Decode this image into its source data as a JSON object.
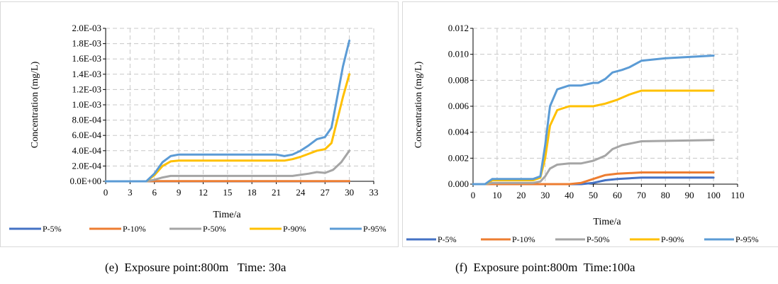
{
  "colors": {
    "p5": "#4472c4",
    "p10": "#ed7d31",
    "p50": "#a5a5a5",
    "p90": "#ffc000",
    "p95": "#5b9bd5"
  },
  "chart_data": [
    {
      "id": "e",
      "type": "line",
      "caption": "(e)  Exposure point:800m   Time: 30a",
      "xlabel": "Time/a",
      "ylabel": "Concentration  (mg/L)",
      "xlim": [
        0,
        33
      ],
      "ylim": [
        0,
        0.002
      ],
      "xticks": [
        0,
        3,
        6,
        9,
        12,
        15,
        18,
        21,
        24,
        27,
        30,
        33
      ],
      "xtick_labels": [
        "0",
        "3",
        "6",
        "9",
        "12",
        "15",
        "18",
        "21",
        "24",
        "27",
        "30",
        "33"
      ],
      "yticks": [
        0,
        0.0002,
        0.0004,
        0.0006,
        0.0008,
        0.001,
        0.0012,
        0.0014,
        0.0016,
        0.0018,
        0.002
      ],
      "ytick_labels": [
        "0.0E+00",
        "2.0E-04",
        "4.0E-04",
        "6.0E-04",
        "8.0E-04",
        "1.0E-03",
        "1.2E-03",
        "1.4E-03",
        "1.6E-03",
        "1.8E-03",
        "2.0E-03"
      ],
      "grid": true,
      "legend_position": "bottom",
      "series": [
        {
          "name": "P-5%",
          "color_key": "p5",
          "x": [
            0,
            30
          ],
          "y": [
            0,
            0
          ]
        },
        {
          "name": "P-10%",
          "color_key": "p10",
          "x": [
            0,
            5,
            6,
            30
          ],
          "y": [
            0,
            0,
            2e-06,
            2e-06
          ]
        },
        {
          "name": "P-50%",
          "color_key": "p50",
          "x": [
            0,
            5,
            6,
            7,
            8,
            9,
            21,
            23,
            25,
            26,
            27,
            28,
            29,
            30
          ],
          "y": [
            0,
            0,
            2e-05,
            5e-05,
            7e-05,
            7e-05,
            7e-05,
            7e-05,
            0.0001,
            0.00012,
            0.00011,
            0.00015,
            0.00025,
            0.0004
          ]
        },
        {
          "name": "P-90%",
          "color_key": "p90",
          "x": [
            0,
            5,
            6,
            7,
            8,
            9,
            21,
            22,
            23,
            24,
            25,
            26,
            27,
            27.8,
            28.5,
            29.2,
            30
          ],
          "y": [
            0,
            0,
            8e-05,
            0.0002,
            0.00026,
            0.00027,
            0.00027,
            0.00027,
            0.00029,
            0.00032,
            0.00036,
            0.0004,
            0.00042,
            0.0005,
            0.0008,
            0.0011,
            0.0014
          ]
        },
        {
          "name": "P-95%",
          "color_key": "p95",
          "x": [
            0,
            5,
            6,
            7,
            8,
            9,
            21,
            22,
            23,
            24,
            25,
            26,
            27,
            27.8,
            28.5,
            29.2,
            30
          ],
          "y": [
            0,
            0,
            0.0001,
            0.00025,
            0.00033,
            0.00035,
            0.00035,
            0.00033,
            0.00035,
            0.0004,
            0.00047,
            0.00055,
            0.00058,
            0.0007,
            0.0011,
            0.0015,
            0.00184
          ]
        }
      ]
    },
    {
      "id": "f",
      "type": "line",
      "caption": "(f)  Exposure point:800m  Time:100a",
      "xlabel": "Time/a",
      "ylabel": "Concentration  (mg/L)",
      "xlim": [
        0,
        110
      ],
      "ylim": [
        0,
        0.012
      ],
      "xticks": [
        0,
        10,
        20,
        30,
        40,
        50,
        60,
        70,
        80,
        90,
        100,
        110
      ],
      "xtick_labels": [
        "0",
        "10",
        "20",
        "30",
        "40",
        "50",
        "60",
        "70",
        "80",
        "90",
        "100",
        "110"
      ],
      "yticks": [
        0,
        0.002,
        0.004,
        0.006,
        0.008,
        0.01,
        0.012
      ],
      "ytick_labels": [
        "0.000",
        "0.002",
        "0.004",
        "0.006",
        "0.008",
        "0.010",
        "0.012"
      ],
      "grid": true,
      "legend_position": "bottom",
      "series": [
        {
          "name": "P-5%",
          "color_key": "p5",
          "x": [
            0,
            45,
            50,
            55,
            60,
            70,
            100
          ],
          "y": [
            0,
            0,
            0.0001,
            0.0003,
            0.0004,
            0.0005,
            0.0005
          ]
        },
        {
          "name": "P-10%",
          "color_key": "p10",
          "x": [
            0,
            40,
            45,
            50,
            55,
            60,
            70,
            100
          ],
          "y": [
            0,
            0,
            0.0001,
            0.0004,
            0.0007,
            0.0008,
            0.0009,
            0.0009
          ]
        },
        {
          "name": "P-50%",
          "color_key": "p50",
          "x": [
            0,
            5,
            8,
            25,
            28,
            30,
            32,
            35,
            40,
            45,
            50,
            55,
            58,
            62,
            70,
            100
          ],
          "y": [
            0,
            0,
            0.0001,
            0.0001,
            0.0002,
            0.0006,
            0.0012,
            0.0015,
            0.0016,
            0.0016,
            0.0018,
            0.0022,
            0.0027,
            0.003,
            0.0033,
            0.0034
          ]
        },
        {
          "name": "P-90%",
          "color_key": "p90",
          "x": [
            0,
            5,
            8,
            25,
            28,
            30,
            32,
            35,
            40,
            45,
            50,
            55,
            60,
            65,
            70,
            100
          ],
          "y": [
            0,
            0,
            0.0003,
            0.0003,
            0.0005,
            0.002,
            0.0045,
            0.0057,
            0.006,
            0.006,
            0.006,
            0.0062,
            0.0065,
            0.0069,
            0.0072,
            0.0072
          ]
        },
        {
          "name": "P-95%",
          "color_key": "p95",
          "x": [
            0,
            5,
            8,
            25,
            28,
            30,
            32,
            35,
            40,
            45,
            50,
            52,
            55,
            58,
            62,
            65,
            70,
            80,
            100
          ],
          "y": [
            0,
            0,
            0.0004,
            0.0004,
            0.0006,
            0.003,
            0.006,
            0.0073,
            0.0076,
            0.0076,
            0.0078,
            0.0078,
            0.0081,
            0.0086,
            0.0088,
            0.009,
            0.0095,
            0.0097,
            0.0099
          ]
        }
      ]
    }
  ]
}
